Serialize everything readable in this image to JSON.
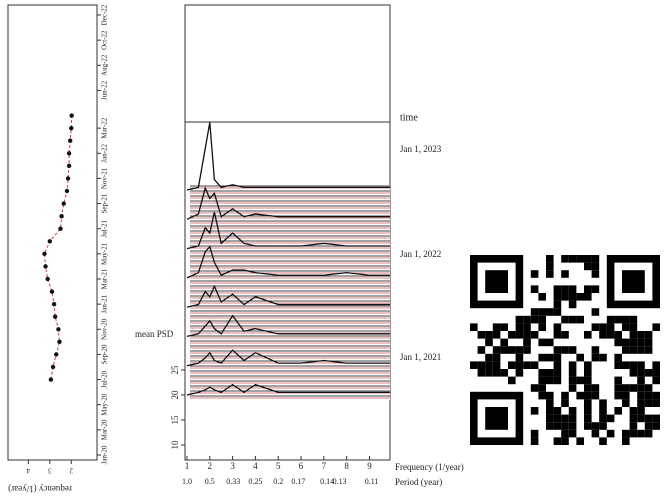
{
  "chart_data": [
    {
      "type": "scatter",
      "y_label": "requency (1/year)",
      "xticks": [
        "Jan-20",
        "Mar-20",
        "May-20",
        "Jul-20",
        "Sep-20",
        "Nov-20",
        "Jan-21",
        "Mar-21",
        "May-21",
        "Jul-21",
        "Sep-21",
        "Nov-21",
        "Jan-22",
        "Mar-22",
        "Jun-22",
        "Aug-22",
        "Oct-22",
        "Dec-22"
      ],
      "xlim": [
        "Jan-20",
        "Dec-22"
      ],
      "yticks": [
        2,
        3,
        4
      ],
      "ylim": [
        0.8,
        4.95
      ],
      "color": "#111111",
      "trend_color": "#d04040",
      "x": [
        "Jul-20",
        "Aug-20",
        "Sep-20",
        "Oct-20",
        "Nov-20",
        "Dec-20",
        "Jan-21",
        "Feb-21",
        "Mar-21",
        "Apr-21",
        "May-21",
        "Jun-21",
        "Jul-21",
        "Aug-21",
        "Sep-21",
        "Oct-21",
        "Nov-21",
        "Dec-21",
        "Jan-22",
        "Feb-22",
        "Mar-22",
        "Apr-22"
      ],
      "values": [
        2.95,
        2.85,
        2.7,
        2.55,
        2.6,
        2.75,
        2.8,
        2.9,
        3.1,
        3.2,
        3.25,
        3.0,
        2.5,
        2.45,
        2.35,
        2.2,
        2.15,
        2.1,
        2.1,
        2.05,
        2.0,
        1.98
      ]
    },
    {
      "type": "waterfall",
      "y_label": "mean PSD",
      "yticks": [
        10,
        15,
        20,
        25
      ],
      "ylim": [
        7,
        32
      ],
      "x_label": "Frequency (1/year)",
      "xticks": [
        1,
        2,
        3,
        4,
        5,
        6,
        7,
        8,
        9
      ],
      "xlim": [
        1,
        9.9
      ],
      "period_label": "Period (year)",
      "period_ticks": [
        {
          "value": 1,
          "label": "1.0"
        },
        0.5,
        0.33,
        0.25,
        0.2,
        0.17,
        0.14,
        0.13,
        0.11
      ],
      "time_label": "time",
      "time_ticks": [
        "Jan 1, 2023",
        "Jan 1, 2022",
        "Jan 1, 2021"
      ],
      "color": "#111111",
      "x": [
        1,
        1.5,
        1.8,
        2,
        2.2,
        2.5,
        3,
        3.5,
        4,
        5,
        6,
        7,
        8,
        9,
        9.9
      ],
      "traces": [
        [
          14,
          15,
          30,
          40,
          18,
          15,
          16,
          15,
          15,
          15,
          15,
          15,
          15,
          15,
          15
        ],
        [
          14,
          16,
          26,
          22,
          24,
          15,
          18,
          15,
          16,
          15,
          15,
          15,
          15,
          15,
          15
        ],
        [
          14,
          15,
          22,
          20,
          28,
          16,
          20,
          16,
          15,
          15,
          15,
          16,
          15,
          15,
          15
        ],
        [
          14,
          16,
          24,
          26,
          20,
          15,
          17,
          17,
          16,
          15,
          15,
          15,
          16,
          15,
          15
        ],
        [
          14,
          15,
          20,
          18,
          22,
          16,
          19,
          15,
          18,
          15,
          15,
          15,
          15,
          15,
          15
        ],
        [
          14,
          15,
          18,
          20,
          17,
          15,
          22,
          16,
          17,
          15,
          15,
          15,
          15,
          15,
          15
        ],
        [
          14,
          15,
          17,
          19,
          16,
          15,
          20,
          16,
          19,
          15,
          15,
          16,
          15,
          15,
          15
        ],
        [
          14,
          15,
          16,
          17,
          16,
          15,
          18,
          15,
          18,
          15,
          15,
          15,
          15,
          15,
          15
        ]
      ]
    }
  ]
}
